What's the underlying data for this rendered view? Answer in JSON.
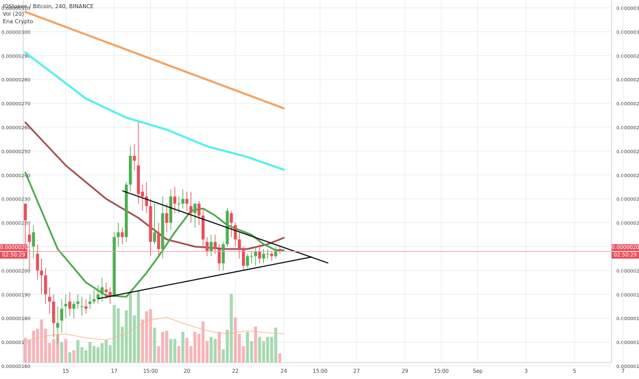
{
  "legend": {
    "title": "IOStoken / Bitcoin, 240, BINANCE",
    "volume": "Vol (20)",
    "indicator": "Ena Crypto"
  },
  "price_tags": {
    "price": "0.00000208",
    "countdown": "02:50:29"
  },
  "colors": {
    "up": "#4caf50",
    "down": "#e8505b",
    "vol_up": "#a8d8b0",
    "vol_down": "#f5b5ba",
    "ma_orange": "#f6a05a",
    "ma_cyan": "#52f0ee",
    "ma_brown": "#a64d4d",
    "ma_green": "#4aa84a",
    "vol_ma": "#f4b98a",
    "trendline": "#000000",
    "price_line": "#f4a0a8",
    "grid": "#e8edf2"
  },
  "chart_data": {
    "type": "candlestick",
    "title": "IOStoken / Bitcoin, 240, BINANCE",
    "y_ticks": [
      "0.00000160",
      "0.00000170",
      "0.00000180",
      "0.00000190",
      "0.00000200",
      "0.00000210",
      "0.00000220",
      "0.00000230",
      "0.00000240",
      "0.00000250",
      "0.00000260",
      "0.00000270",
      "0.00000280",
      "0.00000290",
      "0.00000300",
      "0.00000310"
    ],
    "y_range": [
      1.557e-06,
      3.133e-06
    ],
    "x_ticks": [
      {
        "label": "15",
        "bar": 10
      },
      {
        "label": "17",
        "bar": 22
      },
      {
        "label": "15:00",
        "bar": 31
      },
      {
        "label": "20",
        "bar": 40
      },
      {
        "label": "22",
        "bar": 52
      },
      {
        "label": "24",
        "bar": 64
      },
      {
        "label": "15:00",
        "bar": 73
      },
      {
        "label": "27",
        "bar": 82
      },
      {
        "label": "29",
        "bar": 94
      },
      {
        "label": "15:00",
        "bar": 103
      },
      {
        "label": "Sep",
        "bar": 112
      },
      {
        "label": "3",
        "bar": 124
      },
      {
        "label": "5",
        "bar": 136
      },
      {
        "label": "7",
        "bar": 148
      }
    ],
    "x_bar_count": 153,
    "last_price": 2.08e-06,
    "ohlc": [
      [
        228,
        221,
        227,
        210
      ],
      [
        215,
        212,
        219,
        200
      ],
      [
        210,
        216,
        219,
        205
      ],
      [
        207,
        200,
        211,
        196
      ],
      [
        200,
        198,
        205,
        190
      ],
      [
        198,
        190,
        201,
        186
      ],
      [
        189,
        187,
        193,
        182
      ],
      [
        187,
        178,
        190,
        172
      ],
      [
        176,
        178,
        185,
        169
      ],
      [
        179,
        184,
        188,
        174
      ],
      [
        185,
        186,
        190,
        180
      ],
      [
        187,
        184,
        191,
        181
      ],
      [
        184,
        186,
        187,
        180
      ],
      [
        186,
        187,
        190,
        184
      ],
      [
        185,
        185,
        189,
        181
      ],
      [
        185,
        184,
        188,
        182
      ],
      [
        186,
        187,
        190,
        184
      ],
      [
        187,
        188,
        192,
        186
      ],
      [
        188,
        190,
        194,
        186
      ],
      [
        190,
        193,
        197,
        187
      ],
      [
        192,
        191,
        195,
        188
      ],
      [
        191,
        189,
        193,
        186
      ],
      [
        189,
        214,
        216,
        189
      ],
      [
        214,
        216,
        220,
        210
      ],
      [
        216,
        214,
        218,
        211
      ],
      [
        214,
        236,
        237,
        212
      ],
      [
        236,
        248,
        252,
        233
      ],
      [
        248,
        246,
        253,
        242
      ],
      [
        244,
        232,
        262,
        228
      ],
      [
        233,
        231,
        236,
        225
      ],
      [
        231,
        227,
        237,
        224
      ],
      [
        227,
        212,
        230,
        206
      ],
      [
        212,
        216,
        228,
        211
      ],
      [
        216,
        209,
        220,
        206
      ],
      [
        209,
        224,
        231,
        205
      ],
      [
        224,
        220,
        228,
        216
      ],
      [
        220,
        231,
        234,
        217
      ],
      [
        231,
        228,
        235,
        224
      ],
      [
        228,
        228,
        231,
        224
      ],
      [
        228,
        230,
        234,
        226
      ],
      [
        230,
        228,
        233,
        225
      ],
      [
        227,
        224,
        233,
        220
      ],
      [
        224,
        228,
        228,
        218
      ],
      [
        228,
        223,
        229,
        219
      ],
      [
        223,
        213,
        226,
        210
      ],
      [
        212,
        208,
        214,
        206
      ],
      [
        208,
        212,
        215,
        206
      ],
      [
        212,
        209,
        215,
        207
      ],
      [
        209,
        203,
        211,
        200
      ],
      [
        203,
        211,
        212,
        200
      ],
      [
        211,
        225,
        226,
        210
      ],
      [
        224,
        220,
        225,
        214
      ],
      [
        219,
        213,
        220,
        210
      ],
      [
        213,
        209,
        216,
        205
      ],
      [
        209,
        202,
        210,
        200
      ],
      [
        202,
        206,
        207,
        201
      ],
      [
        206,
        206,
        208,
        203
      ],
      [
        206,
        208,
        210,
        202
      ],
      [
        208,
        205,
        211,
        203
      ],
      [
        205,
        207,
        209,
        203
      ],
      [
        207,
        207,
        209,
        205
      ],
      [
        207,
        206,
        208,
        204
      ],
      [
        206,
        209,
        210,
        205
      ],
      [
        209,
        208,
        210,
        207
      ]
    ],
    "volume": [
      [
        24,
        1
      ],
      [
        22,
        1
      ],
      [
        31,
        1
      ],
      [
        33,
        1
      ],
      [
        42,
        1
      ],
      [
        33,
        1
      ],
      [
        19,
        1
      ],
      [
        23,
        1
      ],
      [
        27,
        1
      ],
      [
        20,
        0
      ],
      [
        23,
        1
      ],
      [
        10,
        0
      ],
      [
        12,
        1
      ],
      [
        22,
        0
      ],
      [
        15,
        0
      ],
      [
        12,
        0
      ],
      [
        20,
        0
      ],
      [
        16,
        0
      ],
      [
        15,
        0
      ],
      [
        19,
        0
      ],
      [
        22,
        0
      ],
      [
        17,
        0
      ],
      [
        56,
        0
      ],
      [
        53,
        0
      ],
      [
        35,
        0
      ],
      [
        51,
        0
      ],
      [
        68,
        0
      ],
      [
        46,
        0
      ],
      [
        70,
        0
      ],
      [
        42,
        1
      ],
      [
        50,
        1
      ],
      [
        52,
        1
      ],
      [
        34,
        0
      ],
      [
        16,
        1
      ],
      [
        30,
        1
      ],
      [
        31,
        1
      ],
      [
        23,
        0
      ],
      [
        23,
        0
      ],
      [
        16,
        1
      ],
      [
        30,
        0
      ],
      [
        24,
        1
      ],
      [
        16,
        1
      ],
      [
        30,
        1
      ],
      [
        28,
        1
      ],
      [
        40,
        1
      ],
      [
        21,
        1
      ],
      [
        25,
        0
      ],
      [
        23,
        0
      ],
      [
        30,
        1
      ],
      [
        13,
        0
      ],
      [
        32,
        0
      ],
      [
        67,
        0
      ],
      [
        44,
        1
      ],
      [
        28,
        1
      ],
      [
        16,
        1
      ],
      [
        30,
        0
      ],
      [
        21,
        0
      ],
      [
        35,
        1
      ],
      [
        25,
        0
      ],
      [
        21,
        0
      ],
      [
        25,
        0
      ],
      [
        25,
        0
      ],
      [
        34,
        0
      ],
      [
        9,
        1
      ]
    ],
    "ma_orange": [
      [
        0,
        308.3
      ],
      [
        64,
        267.9
      ]
    ],
    "ma_cyan": [
      [
        0,
        291.3
      ],
      [
        15,
        272
      ],
      [
        25,
        264
      ],
      [
        35,
        259
      ],
      [
        45,
        252
      ],
      [
        55,
        247.5
      ],
      [
        64,
        242.2
      ]
    ],
    "ma_brown": [
      [
        0,
        262
      ],
      [
        10,
        244
      ],
      [
        20,
        230
      ],
      [
        28,
        222
      ],
      [
        35,
        213
      ],
      [
        42,
        210
      ],
      [
        50,
        209
      ],
      [
        55,
        209
      ],
      [
        60,
        211
      ],
      [
        64,
        213.7
      ]
    ],
    "ma_green": [
      [
        0,
        241
      ],
      [
        8,
        209
      ],
      [
        15,
        195
      ],
      [
        20,
        189.5
      ],
      [
        25,
        189
      ],
      [
        30,
        199
      ],
      [
        33,
        206
      ],
      [
        37,
        216
      ],
      [
        41,
        225
      ],
      [
        44,
        226
      ],
      [
        47,
        223
      ],
      [
        50,
        219
      ],
      [
        53,
        217
      ],
      [
        56,
        215
      ],
      [
        59,
        211
      ],
      [
        62,
        208.5
      ],
      [
        64,
        208.5
      ]
    ],
    "vol_ma": [
      [
        0,
        21
      ],
      [
        5,
        26
      ],
      [
        10,
        28
      ],
      [
        15,
        24
      ],
      [
        20,
        22
      ],
      [
        25,
        28
      ],
      [
        30,
        41
      ],
      [
        35,
        44
      ],
      [
        40,
        37
      ],
      [
        45,
        31
      ],
      [
        50,
        28
      ],
      [
        55,
        31
      ],
      [
        60,
        29
      ],
      [
        64,
        28
      ]
    ],
    "trendlines": [
      {
        "name": "upper",
        "from": [
          24,
          233.4
        ],
        "to": [
          75,
          203.1
        ]
      },
      {
        "name": "lower",
        "from": [
          18,
          188.2
        ],
        "to": [
          71,
          205.7
        ]
      }
    ]
  }
}
